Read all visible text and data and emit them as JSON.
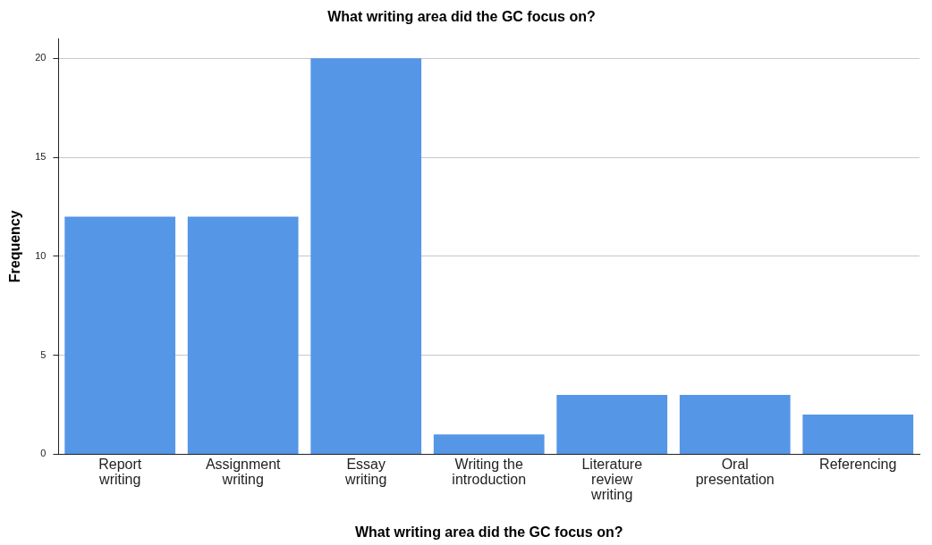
{
  "chart_data": {
    "type": "bar",
    "title": "What writing area did the GC focus on?",
    "xlabel": "What writing area did the GC focus on?",
    "ylabel": "Frequency",
    "categories": [
      "Report writing",
      "Assignment writing",
      "Essay writing",
      "Writing the introduction",
      "Literature review writing",
      "Oral presentation",
      "Referencing"
    ],
    "values": [
      12,
      12,
      20,
      1,
      3,
      3,
      2
    ],
    "color": "#5596e6",
    "ylim": [
      0,
      21
    ],
    "yticks": [
      0,
      5,
      10,
      15,
      20
    ],
    "grid": "y",
    "legend": false
  }
}
